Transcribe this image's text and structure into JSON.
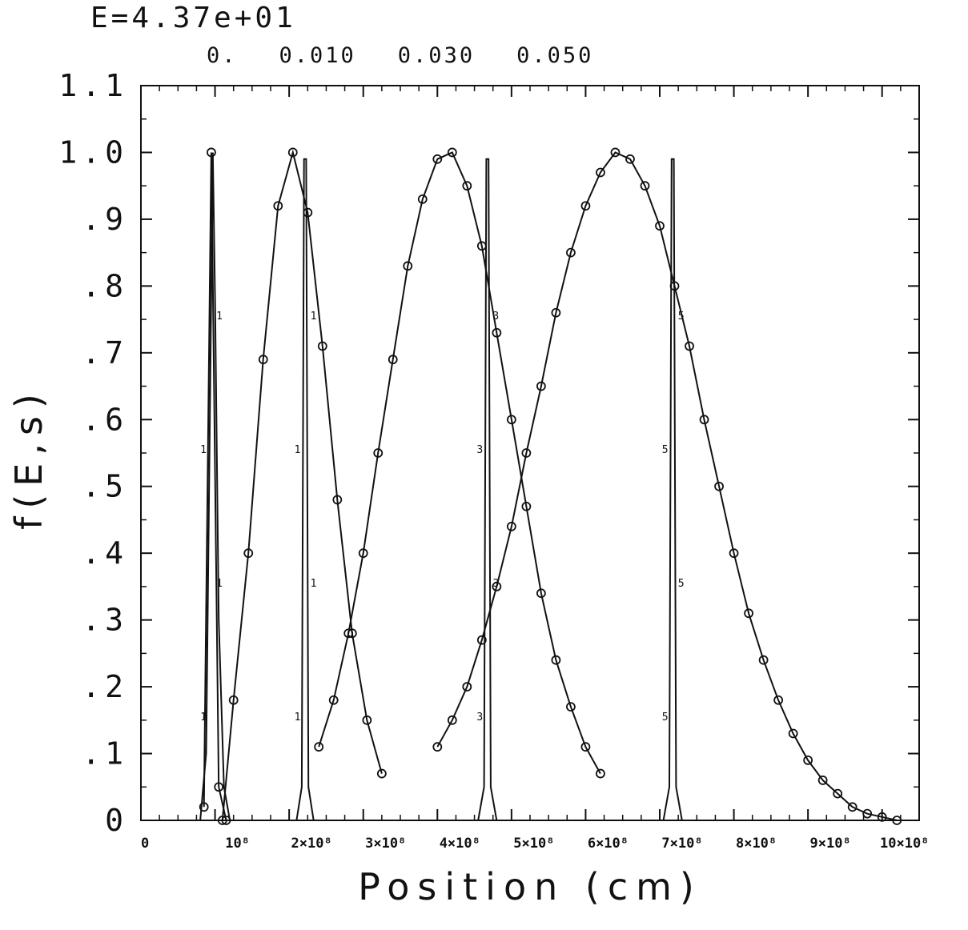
{
  "header": {
    "energy_label": "E=4.37e+01",
    "time_labels": [
      "0.",
      "0.010",
      "0.030",
      "0.050"
    ]
  },
  "chart_data": {
    "type": "line",
    "title": "",
    "xlabel": "Position (cm)",
    "ylabel": "f(E,s)",
    "xlim": [
      0,
      10.5
    ],
    "ylim": [
      0,
      1.1
    ],
    "x_unit_note": "x values in units of 1e8 cm",
    "x_tick_labels": [
      "0",
      "10⁸",
      "2×10⁸",
      "3×10⁸",
      "4×10⁸",
      "5×10⁸",
      "6×10⁸",
      "7×10⁸",
      "8×10⁸",
      "9×10⁸",
      "10×10⁸"
    ],
    "x_tick_values": [
      0,
      1,
      2,
      3,
      4,
      5,
      6,
      7,
      8,
      9,
      10
    ],
    "y_tick_labels": [
      "0",
      ".1",
      ".2",
      ".3",
      ".4",
      ".5",
      ".6",
      ".7",
      ".8",
      ".9",
      "1.0",
      "1.1"
    ],
    "y_tick_values": [
      0,
      0.1,
      0.2,
      0.3,
      0.4,
      0.5,
      0.6,
      0.7,
      0.8,
      0.9,
      1.0,
      1.1
    ],
    "grid": false,
    "series": [
      {
        "marker": "circle",
        "x": [
          0.85,
          0.95,
          1.05,
          1.15
        ],
        "y": [
          0.02,
          1.0,
          0.05,
          0.0
        ]
      },
      {
        "marker": "circle",
        "x": [
          1.1,
          1.25,
          1.45,
          1.65,
          1.85,
          2.05,
          2.25,
          2.45,
          2.65,
          2.85,
          3.05,
          3.25
        ],
        "y": [
          0.0,
          0.18,
          0.4,
          0.69,
          0.92,
          1.0,
          0.91,
          0.71,
          0.48,
          0.28,
          0.15,
          0.07
        ]
      },
      {
        "marker": "circle",
        "x": [
          2.4,
          2.6,
          2.8,
          3.0,
          3.2,
          3.4,
          3.6,
          3.8,
          4.0,
          4.2,
          4.4,
          4.6,
          4.8,
          5.0,
          5.2,
          5.4,
          5.6,
          5.8,
          6.0,
          6.2
        ],
        "y": [
          0.11,
          0.18,
          0.28,
          0.4,
          0.55,
          0.69,
          0.83,
          0.93,
          0.99,
          1.0,
          0.95,
          0.86,
          0.73,
          0.6,
          0.47,
          0.34,
          0.24,
          0.17,
          0.11,
          0.07
        ]
      },
      {
        "marker": "circle",
        "x": [
          4.0,
          4.2,
          4.4,
          4.6,
          4.8,
          5.0,
          5.2,
          5.4,
          5.6,
          5.8,
          6.0,
          6.2,
          6.4,
          6.6,
          6.8,
          7.0,
          7.2,
          7.4,
          7.6,
          7.8,
          8.0,
          8.2,
          8.4,
          8.6,
          8.8,
          9.0,
          9.2,
          9.4,
          9.6,
          9.8,
          10.0,
          10.2
        ],
        "y": [
          0.11,
          0.15,
          0.2,
          0.27,
          0.35,
          0.44,
          0.55,
          0.65,
          0.76,
          0.85,
          0.92,
          0.97,
          1.0,
          0.99,
          0.95,
          0.89,
          0.8,
          0.71,
          0.6,
          0.5,
          0.4,
          0.31,
          0.24,
          0.18,
          0.13,
          0.09,
          0.06,
          0.04,
          0.02,
          0.01,
          0.005,
          0.0
        ]
      },
      {
        "marker": "none",
        "label": "1",
        "x": [
          0.8,
          0.88,
          0.93,
          0.97,
          1.0,
          1.05,
          1.12,
          1.2
        ],
        "y": [
          0.0,
          0.1,
          0.6,
          1.0,
          0.78,
          0.3,
          0.05,
          0.0
        ]
      },
      {
        "marker": "none",
        "label": "1",
        "x": [
          2.1,
          2.17,
          2.2,
          2.23,
          2.26,
          2.33
        ],
        "y": [
          0.0,
          0.05,
          0.99,
          0.99,
          0.05,
          0.0
        ]
      },
      {
        "marker": "none",
        "label": "3",
        "x": [
          4.55,
          4.63,
          4.66,
          4.69,
          4.72,
          4.8
        ],
        "y": [
          0.0,
          0.05,
          0.99,
          0.99,
          0.05,
          0.0
        ]
      },
      {
        "marker": "none",
        "label": "5",
        "x": [
          7.05,
          7.13,
          7.16,
          7.19,
          7.22,
          7.3
        ],
        "y": [
          0.0,
          0.05,
          0.99,
          0.99,
          0.05,
          0.0
        ]
      }
    ]
  }
}
